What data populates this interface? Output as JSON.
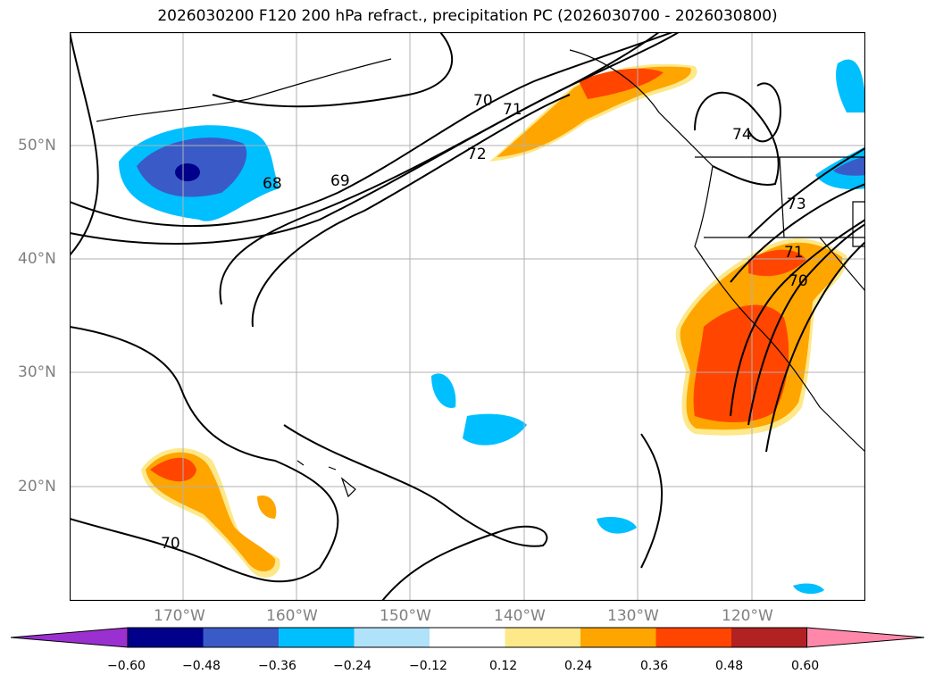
{
  "title": "2026030200 F120 200 hPa refract., precipitation PC (2026030700 - 2026030800)",
  "latitude_labels": [
    "50°N",
    "40°N",
    "30°N",
    "20°N"
  ],
  "longitude_labels": [
    "170°W",
    "160°W",
    "150°W",
    "140°W",
    "130°W",
    "120°W"
  ],
  "contour_labels": [
    "68",
    "69",
    "70",
    "71",
    "72",
    "73",
    "74",
    "70",
    "71",
    "70"
  ],
  "colorbar": {
    "tick_labels": [
      "−0.60",
      "−0.48",
      "−0.36",
      "−0.24",
      "−0.12",
      "0.12",
      "0.24",
      "0.36",
      "0.48",
      "0.60"
    ],
    "colors": [
      "#9b30d0",
      "#00008b",
      "#3a5bc7",
      "#00bfff",
      "#b0e2fa",
      "#ffffff",
      "#fde88a",
      "#ffa500",
      "#ff4500",
      "#b22222",
      "#ff88aa"
    ]
  },
  "colors": {
    "negative_anomaly_light": "#00bfff",
    "negative_anomaly_mid": "#3a5bc7",
    "negative_anomaly_dark": "#00008b",
    "positive_anomaly_light": "#fde88a",
    "positive_anomaly_mid": "#ffa500",
    "positive_anomaly_strong": "#ff4500",
    "grid": "#b0b0b0",
    "coast": "#000000"
  }
}
